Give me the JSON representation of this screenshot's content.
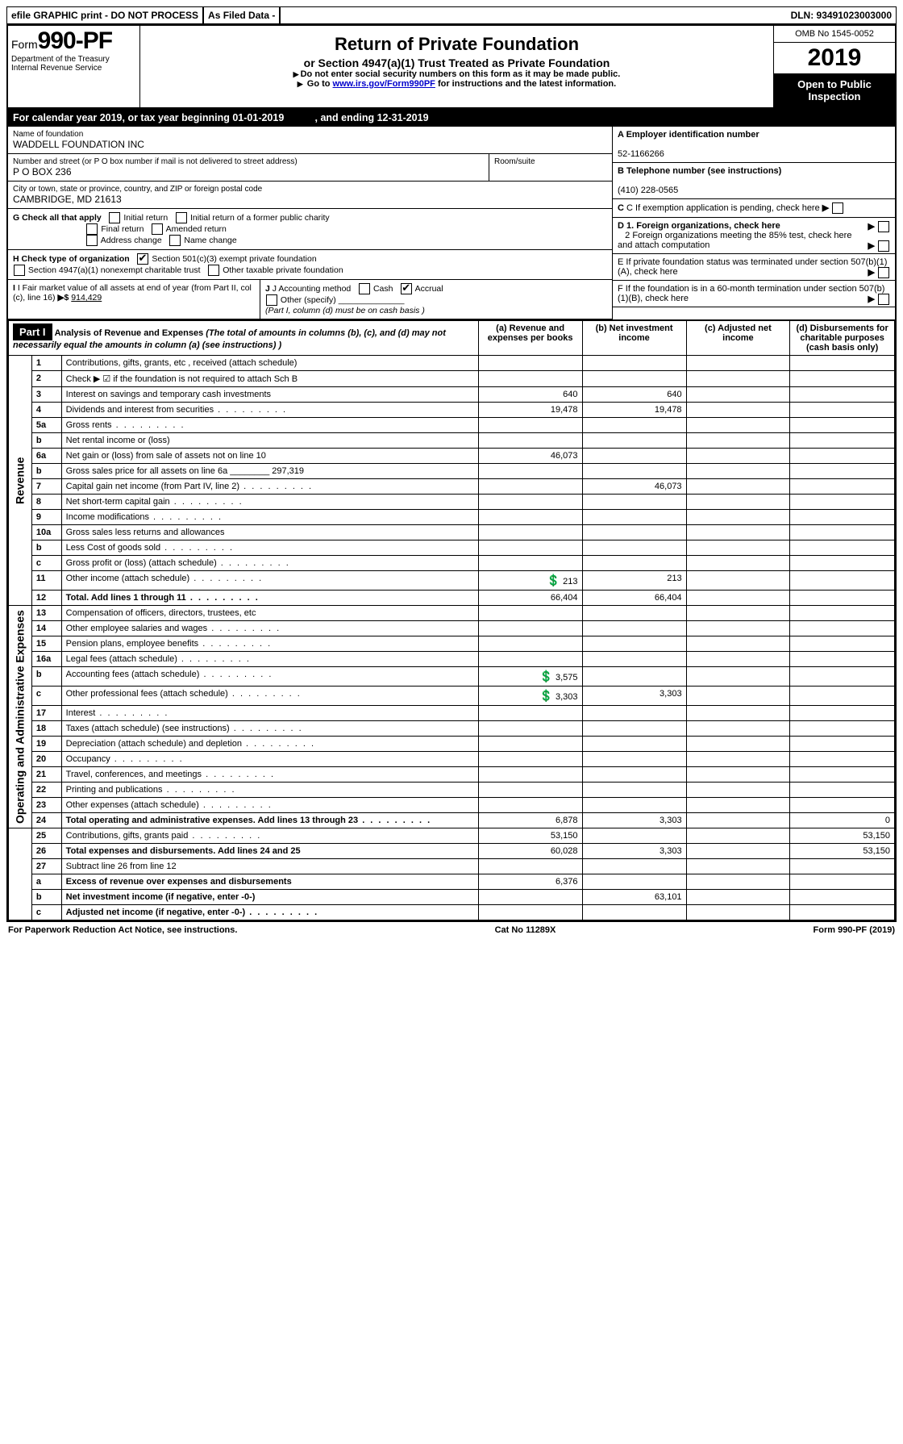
{
  "top": {
    "efile": "efile GRAPHIC print - DO NOT PROCESS",
    "asfiled": "As Filed Data -",
    "dln": "DLN: 93491023003000"
  },
  "header": {
    "form_prefix": "Form",
    "form_number": "990-PF",
    "dept": "Department of the Treasury",
    "irs": "Internal Revenue Service",
    "title": "Return of Private Foundation",
    "subtitle": "or Section 4947(a)(1) Trust Treated as Private Foundation",
    "note1": "Do not enter social security numbers on this form as it may be made public.",
    "note2_a": "Go to ",
    "note2_link": "www.irs.gov/Form990PF",
    "note2_b": " for instructions and the latest information.",
    "omb": "OMB No 1545-0052",
    "year": "2019",
    "open": "Open to Public Inspection"
  },
  "calendar": {
    "text_a": "For calendar year 2019, or tax year beginning ",
    "begin": "01-01-2019",
    "text_b": ", and ending ",
    "end": "12-31-2019"
  },
  "entity": {
    "name_lbl": "Name of foundation",
    "name": "WADDELL FOUNDATION INC",
    "addr_lbl": "Number and street (or P O  box number if mail is not delivered to street address)",
    "addr": "P O BOX 236",
    "room_lbl": "Room/suite",
    "city_lbl": "City or town, state or province, country, and ZIP or foreign postal code",
    "city": "CAMBRIDGE, MD  21613",
    "ein_lbl": "A Employer identification number",
    "ein": "52-1166266",
    "tel_lbl": "B Telephone number (see instructions)",
    "tel": "(410) 228-0565",
    "c_lbl": "C If exemption application is pending, check here",
    "g_lbl": "G Check all that apply",
    "g_opts": [
      "Initial return",
      "Initial return of a former public charity",
      "Final return",
      "Amended return",
      "Address change",
      "Name change"
    ],
    "h_lbl": "H Check type of organization",
    "h_501": "Section 501(c)(3) exempt private foundation",
    "h_4947": "Section 4947(a)(1) nonexempt charitable trust",
    "h_other": "Other taxable private foundation",
    "i_lbl": "I Fair market value of all assets at end of year (from Part II, col  (c), line 16) ",
    "i_val": "914,429",
    "j_lbl": "J Accounting method",
    "j_cash": "Cash",
    "j_accrual": "Accrual",
    "j_other": "Other (specify)",
    "j_note": "(Part I, column (d) must be on cash basis )",
    "d1": "D 1. Foreign organizations, check here",
    "d2": "2  Foreign organizations meeting the 85% test, check here and attach computation",
    "e": "E   If private foundation status was terminated under section 507(b)(1)(A), check here",
    "f": "F   If the foundation is in a 60-month termination under section 507(b)(1)(B), check here"
  },
  "part1": {
    "label": "Part I",
    "title": "Analysis of Revenue and Expenses",
    "title_note": " (The total of amounts in columns (b), (c), and (d) may not necessarily equal the amounts in column (a) (see instructions) )",
    "cols": {
      "a": "(a)   Revenue and expenses per books",
      "b": "(b)   Net investment income",
      "c": "(c)   Adjusted net income",
      "d": "(d)   Disbursements for charitable purposes (cash basis only)"
    },
    "revenue_side": "Revenue",
    "expense_side": "Operating and Administrative Expenses",
    "rows": [
      {
        "n": "1",
        "d": "Contributions, gifts, grants, etc , received (attach schedule)"
      },
      {
        "n": "2",
        "d": "Check ▶ ☑ if the foundation is not required to attach Sch  B",
        "d2": true
      },
      {
        "n": "3",
        "d": "Interest on savings and temporary cash investments",
        "a": "640",
        "b": "640"
      },
      {
        "n": "4",
        "d": "Dividends and interest from securities",
        "a": "19,478",
        "b": "19,478",
        "dots": true
      },
      {
        "n": "5a",
        "d": "Gross rents",
        "dots": true
      },
      {
        "n": "b",
        "d": "Net rental income or (loss)"
      },
      {
        "n": "6a",
        "d": "Net gain or (loss) from sale of assets not on line 10",
        "a": "46,073"
      },
      {
        "n": "b",
        "d": "Gross sales price for all assets on line 6a ________ 297,319"
      },
      {
        "n": "7",
        "d": "Capital gain net income (from Part IV, line 2)",
        "b": "46,073",
        "dots": true
      },
      {
        "n": "8",
        "d": "Net short-term capital gain",
        "dots": true
      },
      {
        "n": "9",
        "d": "Income modifications",
        "dots": true
      },
      {
        "n": "10a",
        "d": "Gross sales less returns and allowances"
      },
      {
        "n": "b",
        "d": "Less  Cost of goods sold",
        "dots": true
      },
      {
        "n": "c",
        "d": "Gross profit or (loss) (attach schedule)",
        "dots": true
      },
      {
        "n": "11",
        "d": "Other income (attach schedule)",
        "a": "213",
        "b": "213",
        "eyes": true,
        "dots": true
      },
      {
        "n": "12",
        "d": "Total. Add lines 1 through 11",
        "a": "66,404",
        "b": "66,404",
        "bold": true,
        "dots": true
      },
      {
        "n": "13",
        "d": "Compensation of officers, directors, trustees, etc"
      },
      {
        "n": "14",
        "d": "Other employee salaries and wages",
        "dots": true
      },
      {
        "n": "15",
        "d": "Pension plans, employee benefits",
        "dots": true
      },
      {
        "n": "16a",
        "d": "Legal fees (attach schedule)",
        "dots": true
      },
      {
        "n": "b",
        "d": "Accounting fees (attach schedule)",
        "a": "3,575",
        "eyes": true,
        "dots": true
      },
      {
        "n": "c",
        "d": "Other professional fees (attach schedule)",
        "a": "3,303",
        "b": "3,303",
        "eyes": true,
        "dots": true
      },
      {
        "n": "17",
        "d": "Interest",
        "dots": true
      },
      {
        "n": "18",
        "d": "Taxes (attach schedule) (see instructions)",
        "dots": true
      },
      {
        "n": "19",
        "d": "Depreciation (attach schedule) and depletion",
        "dots": true
      },
      {
        "n": "20",
        "d": "Occupancy",
        "dots": true
      },
      {
        "n": "21",
        "d": "Travel, conferences, and meetings",
        "dots": true
      },
      {
        "n": "22",
        "d": "Printing and publications",
        "dots": true
      },
      {
        "n": "23",
        "d": "Other expenses (attach schedule)",
        "dots": true
      },
      {
        "n": "24",
        "d": "Total operating and administrative expenses. Add lines 13 through 23",
        "a": "6,878",
        "b": "3,303",
        "dd": "0",
        "bold": true,
        "dots": true
      },
      {
        "n": "25",
        "d": "Contributions, gifts, grants paid",
        "a": "53,150",
        "dd": "53,150",
        "dots": true
      },
      {
        "n": "26",
        "d": "Total expenses and disbursements. Add lines 24 and 25",
        "a": "60,028",
        "b": "3,303",
        "dd": "53,150",
        "bold": true
      },
      {
        "n": "27",
        "d": "Subtract line 26 from line 12"
      },
      {
        "n": "a",
        "d": "Excess of revenue over expenses and disbursements",
        "a": "6,376",
        "bold": true
      },
      {
        "n": "b",
        "d": "Net investment income (if negative, enter -0-)",
        "b": "63,101",
        "bold": true
      },
      {
        "n": "c",
        "d": "Adjusted net income (if negative, enter -0-)",
        "bold": true,
        "dots": true
      }
    ]
  },
  "footer": {
    "left": "For Paperwork Reduction Act Notice, see instructions.",
    "mid": "Cat  No  11289X",
    "right": "Form 990-PF (2019)"
  }
}
